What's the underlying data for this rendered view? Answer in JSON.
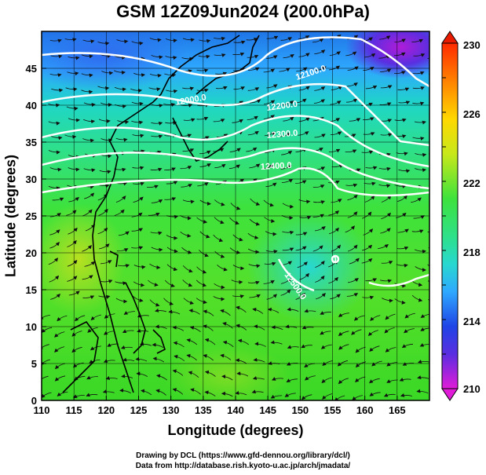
{
  "title": "GSM 12Z09Jun2024 (200.0hPa)",
  "x_axis": {
    "label": "Longitude (degrees)",
    "ticks": [
      "110",
      "115",
      "120",
      "125",
      "130",
      "135",
      "140",
      "145",
      "150",
      "155",
      "160",
      "165"
    ]
  },
  "y_axis": {
    "label": "Latitude  (degrees)",
    "ticks": [
      "0",
      "5",
      "10",
      "15",
      "20",
      "25",
      "30",
      "35",
      "40",
      "45"
    ]
  },
  "colorbar": {
    "labels": [
      "230",
      "226",
      "222",
      "218",
      "214",
      "210"
    ]
  },
  "contours": [
    {
      "label": "12100.0"
    },
    {
      "label": "12000.0"
    },
    {
      "label": "12200.0"
    },
    {
      "label": "12300.0"
    },
    {
      "label": "12400.0"
    },
    {
      "label": "12500.0"
    },
    {
      "label": "0"
    }
  ],
  "credits": {
    "line1": "Drawing by DCL (https://www.gfd-dennou.org/library/dcl/)",
    "line2": "Data from http://database.rish.kyoto-u.ac.jp/arch/jmadata/"
  }
}
